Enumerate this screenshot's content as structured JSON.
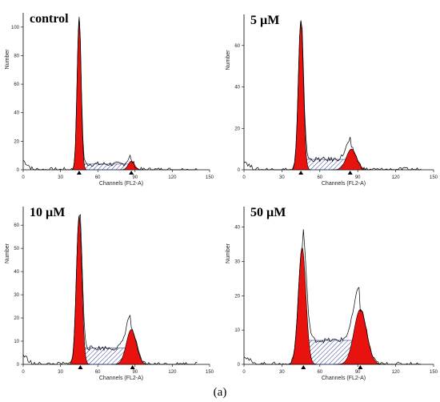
{
  "caption": "(a)",
  "chart_data": [
    {
      "type": "area",
      "title": "control",
      "xlabel": "Channels (FL2-A)",
      "ylabel": "Number",
      "xlim": [
        0,
        150
      ],
      "ylim": [
        0,
        110
      ],
      "xticks": [
        0,
        30,
        60,
        90,
        120,
        150
      ],
      "yticks": [
        0,
        20,
        40,
        60,
        80,
        100
      ],
      "g1_peak": {
        "x": 45,
        "y": 106,
        "sd": 1.6
      },
      "g2m_peak": {
        "x": 87,
        "y": 6,
        "sd": 2.5
      },
      "s_phase": {
        "x_range": [
          45,
          87
        ],
        "y": 4
      },
      "markers_x": [
        45,
        87
      ],
      "grid": false
    },
    {
      "type": "area",
      "title": "5 µM",
      "xlabel": "Channels (FL2-A)",
      "ylabel": "Number",
      "xlim": [
        0,
        150
      ],
      "ylim": [
        0,
        75
      ],
      "xticks": [
        0,
        30,
        60,
        90,
        120,
        150
      ],
      "yticks": [
        0,
        20,
        40,
        60
      ],
      "g1_peak": {
        "x": 45,
        "y": 72,
        "sd": 2.0
      },
      "g2m_peak": {
        "x": 85,
        "y": 10,
        "sd": 4.0
      },
      "s_phase": {
        "x_range": [
          45,
          85
        ],
        "y": 5
      },
      "markers_x": [
        45,
        84
      ],
      "grid": false
    },
    {
      "type": "area",
      "title": "10 µM",
      "xlabel": "Channels (FL2-A)",
      "ylabel": "Number",
      "xlim": [
        0,
        150
      ],
      "ylim": [
        0,
        68
      ],
      "xticks": [
        0,
        30,
        60,
        90,
        120,
        150
      ],
      "yticks": [
        0,
        10,
        20,
        30,
        40,
        50,
        60
      ],
      "g1_peak": {
        "x": 45,
        "y": 64,
        "sd": 2.2
      },
      "g2m_peak": {
        "x": 87,
        "y": 15,
        "sd": 4.0
      },
      "s_phase": {
        "x_range": [
          45,
          87
        ],
        "y": 7
      },
      "markers_x": [
        46,
        88
      ],
      "grid": false
    },
    {
      "type": "area",
      "title": "50 µM",
      "xlabel": "Channels (FL2-A)",
      "ylabel": "Number",
      "xlim": [
        0,
        150
      ],
      "ylim": [
        0,
        46
      ],
      "xticks": [
        0,
        30,
        60,
        90,
        120,
        150
      ],
      "yticks": [
        0,
        10,
        20,
        30,
        40
      ],
      "g1_peak": {
        "x": 46,
        "y": 34,
        "sd": 3.0
      },
      "g2m_peak": {
        "x": 92,
        "y": 16,
        "sd": 5.0
      },
      "s_phase": {
        "x_range": [
          46,
          92
        ],
        "y": 7
      },
      "markers_x": [
        47,
        92
      ],
      "grid": false
    }
  ],
  "colors": {
    "peak_fill": "#e8130f",
    "s_phase_hatch": "#2b3a8f",
    "line": "#000000"
  }
}
